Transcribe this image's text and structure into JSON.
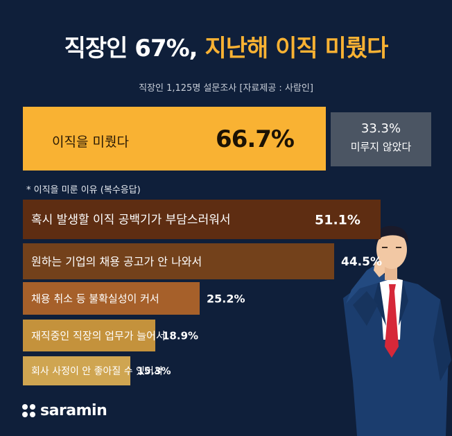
{
  "header": {
    "title_white": "직장인 67%,",
    "title_orange": "지난해 이직 미뤘다",
    "subtitle": "직장인 1,125명 설문조사 [자료제공 : 사람인]"
  },
  "summary": {
    "main_label": "이직을 미뤘다",
    "main_value": "66.7%",
    "side_value": "33.3%",
    "side_label": "미루지 않았다"
  },
  "reasons_title": "*  이직을 미룬 이유 (복수응답)",
  "chart_data": {
    "type": "bar",
    "title": "이직을 미룬 이유 (복수응답)",
    "categories": [
      "혹시 발생할 이직 공백기가 부담스러워서",
      "원하는 기업의 채용 공고가 안 나와서",
      "채용 취소 등 불확실성이 커서",
      "재직중인 직장의 업무가 늘어서",
      "회사 사정이 안 좋아질 수 있어서"
    ],
    "values": [
      51.1,
      44.5,
      25.2,
      18.9,
      15.3
    ],
    "value_labels": [
      "51.1%",
      "44.5%",
      "25.2%",
      "18.9%",
      "15.3%"
    ],
    "colors": [
      "#5e2d12",
      "#73411b",
      "#a6602a",
      "#c4923c",
      "#cfa551"
    ],
    "pie_split": {
      "labels": [
        "이직을 미뤘다",
        "미루지 않았다"
      ],
      "values": [
        66.7,
        33.3
      ]
    }
  },
  "brand": {
    "name": "saramin"
  }
}
